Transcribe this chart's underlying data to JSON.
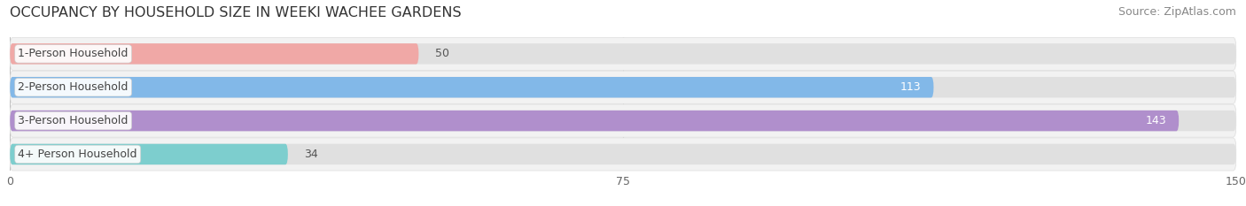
{
  "title": "OCCUPANCY BY HOUSEHOLD SIZE IN WEEKI WACHEE GARDENS",
  "source": "Source: ZipAtlas.com",
  "categories": [
    "1-Person Household",
    "2-Person Household",
    "3-Person Household",
    "4+ Person Household"
  ],
  "values": [
    50,
    113,
    143,
    34
  ],
  "bar_colors": [
    "#f0a8a6",
    "#82b8e8",
    "#b08fcc",
    "#7dcece"
  ],
  "xlim": [
    0,
    150
  ],
  "xticks": [
    0,
    75,
    150
  ],
  "page_bg": "#f5f5f5",
  "row_bg": "#ececec",
  "bar_track_color": "#e4e4e4",
  "title_fontsize": 11.5,
  "source_fontsize": 9,
  "label_fontsize": 9,
  "tick_fontsize": 9,
  "bar_height": 0.62,
  "figsize": [
    14.06,
    2.33
  ]
}
